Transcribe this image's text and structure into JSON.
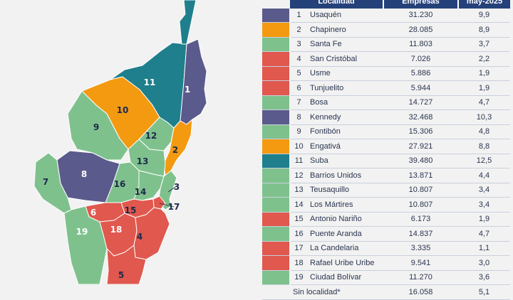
{
  "colors": {
    "purple": "#5b5a8c",
    "orange": "#f39a11",
    "green": "#7fc18d",
    "red": "#e0584e",
    "teal": "#1f7f8c",
    "header": "#25417a"
  },
  "table": {
    "headers": {
      "localidad": "Localidad",
      "empresas": "Empresas",
      "periodo": "may-2025"
    },
    "rows": [
      {
        "num": "1",
        "name": "Usaquén",
        "empresas": "31.230",
        "pct": "9,9",
        "color": "#5b5a8c"
      },
      {
        "num": "2",
        "name": "Chapinero",
        "empresas": "28.085",
        "pct": "8,9",
        "color": "#f39a11"
      },
      {
        "num": "3",
        "name": "Santa Fe",
        "empresas": "11.803",
        "pct": "3,7",
        "color": "#7fc18d"
      },
      {
        "num": "4",
        "name": "San Cristóbal",
        "empresas": "7.026",
        "pct": "2,2",
        "color": "#e0584e"
      },
      {
        "num": "5",
        "name": "Usme",
        "empresas": "5.886",
        "pct": "1,9",
        "color": "#e0584e"
      },
      {
        "num": "6",
        "name": "Tunjuelito",
        "empresas": "5.944",
        "pct": "1,9",
        "color": "#e0584e"
      },
      {
        "num": "7",
        "name": "Bosa",
        "empresas": "14.727",
        "pct": "4,7",
        "color": "#7fc18d"
      },
      {
        "num": "8",
        "name": "Kennedy",
        "empresas": "32.468",
        "pct": "10,3",
        "color": "#5b5a8c"
      },
      {
        "num": "9",
        "name": "Fontibón",
        "empresas": "15.306",
        "pct": "4,8",
        "color": "#7fc18d"
      },
      {
        "num": "10",
        "name": "Engativá",
        "empresas": "27.921",
        "pct": "8,8",
        "color": "#f39a11"
      },
      {
        "num": "11",
        "name": "Suba",
        "empresas": "39.480",
        "pct": "12,5",
        "color": "#1f7f8c"
      },
      {
        "num": "12",
        "name": "Barrios Unidos",
        "empresas": "13.871",
        "pct": "4,4",
        "color": "#7fc18d"
      },
      {
        "num": "13",
        "name": "Teusaquillo",
        "empresas": "10.807",
        "pct": "3,4",
        "color": "#7fc18d"
      },
      {
        "num": "14",
        "name": "Los Mártires",
        "empresas": "10.807",
        "pct": "3,4",
        "color": "#7fc18d"
      },
      {
        "num": "15",
        "name": "Antonio Nariño",
        "empresas": "6.173",
        "pct": "1,9",
        "color": "#e0584e"
      },
      {
        "num": "16",
        "name": "Puente Aranda",
        "empresas": "14.837",
        "pct": "4,7",
        "color": "#7fc18d"
      },
      {
        "num": "17",
        "name": "La Candelaria",
        "empresas": "3.335",
        "pct": "1,1",
        "color": "#e0584e"
      },
      {
        "num": "18",
        "name": "Rafael Uribe Uribe",
        "empresas": "9.541",
        "pct": "3,0",
        "color": "#e0584e"
      },
      {
        "num": "19",
        "name": "Ciudad Bolívar",
        "empresas": "11.270",
        "pct": "3,6",
        "color": "#7fc18d"
      }
    ],
    "tail": {
      "name": "Sin localidad*",
      "empresas": "16.058",
      "pct": "5,1"
    }
  },
  "map_labels": [
    {
      "num": "1"
    },
    {
      "num": "2"
    },
    {
      "num": "3"
    },
    {
      "num": "4"
    },
    {
      "num": "5"
    },
    {
      "num": "6"
    },
    {
      "num": "7"
    },
    {
      "num": "8"
    },
    {
      "num": "9"
    },
    {
      "num": "10"
    },
    {
      "num": "11"
    },
    {
      "num": "12"
    },
    {
      "num": "13"
    },
    {
      "num": "14"
    },
    {
      "num": "15"
    },
    {
      "num": "16"
    },
    {
      "num": "17"
    },
    {
      "num": "18"
    },
    {
      "num": "19"
    }
  ]
}
